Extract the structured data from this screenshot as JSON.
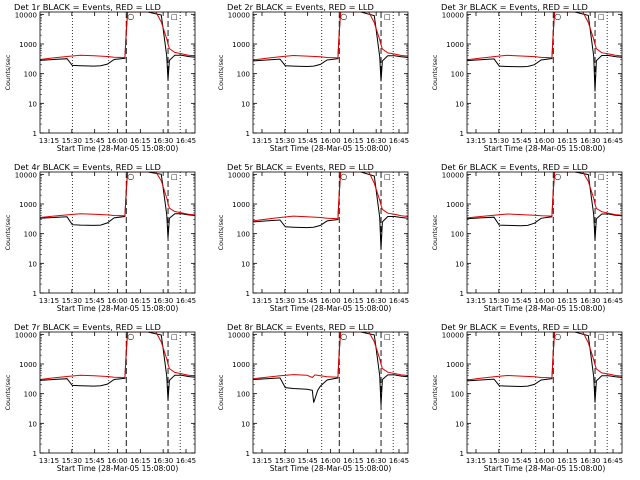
{
  "chart_data": {
    "type": "line",
    "common": {
      "ylabel": "Counts/sec",
      "xlabel": "Start Time (28-Mar-05 15:08:00)",
      "x_ticks": [
        "13:15",
        "15:30",
        "15:45",
        "16:00",
        "16:15",
        "16:30",
        "16:45"
      ],
      "y_ticks": [
        "1",
        "10",
        "100",
        "1000",
        "10000"
      ],
      "ylim": [
        1,
        12000
      ],
      "y_scale": "log",
      "xlim_min": [
        0,
        115
      ],
      "dotted_lines_min": [
        24,
        51,
        104
      ],
      "dashed_lines_min": [
        64,
        95
      ],
      "series_colors": {
        "events": "#000000",
        "lld": "#e00000"
      },
      "marker_labels": [
        "○",
        "□"
      ]
    },
    "panels": [
      {
        "title": "Det 1r BLACK = Events, RED = LLD",
        "series": [
          {
            "name": "events",
            "x": [
              0,
              10,
              20,
              24,
              30,
              40,
              45,
              50,
              55,
              63,
              64,
              65,
              70,
              80,
              90,
              94,
              95,
              96,
              100,
              105,
              110,
              115
            ],
            "y": [
              280,
              300,
              320,
              190,
              185,
              180,
              185,
              210,
              300,
              330,
              2500,
              12000,
              12000,
              12000,
              9500,
              400,
              60,
              280,
              420,
              420,
              380,
              360
            ]
          },
          {
            "name": "lld",
            "x": [
              0,
              10,
              20,
              30,
              40,
              50,
              55,
              63,
              64,
              65,
              70,
              80,
              86,
              90,
              94,
              95,
              96,
              100,
              105,
              110,
              115
            ],
            "y": [
              300,
              340,
              380,
              420,
              400,
              380,
              360,
              350,
              3000,
              12000,
              12000,
              12000,
              12000,
              5500,
              1500,
              1000,
              700,
              520,
              470,
              420,
              400
            ]
          }
        ]
      },
      {
        "title": "Det 2r BLACK = Events, RED = LLD",
        "series": [
          {
            "name": "events",
            "x": [
              0,
              10,
              20,
              24,
              30,
              40,
              45,
              50,
              55,
              63,
              64,
              65,
              70,
              80,
              90,
              94,
              95,
              96,
              100,
              105,
              110,
              115
            ],
            "y": [
              270,
              290,
              310,
              185,
              180,
              175,
              180,
              205,
              290,
              320,
              2400,
              12000,
              12000,
              12000,
              9000,
              380,
              55,
              270,
              400,
              400,
              370,
              350
            ]
          },
          {
            "name": "lld",
            "x": [
              0,
              10,
              20,
              30,
              40,
              50,
              55,
              63,
              64,
              65,
              70,
              80,
              86,
              90,
              94,
              95,
              96,
              100,
              105,
              110,
              115
            ],
            "y": [
              290,
              330,
              370,
              410,
              390,
              370,
              350,
              340,
              2900,
              12000,
              12000,
              12000,
              12000,
              5200,
              1400,
              950,
              680,
              500,
              460,
              410,
              390
            ]
          }
        ]
      },
      {
        "title": "Det 3r BLACK = Events, RED = LLD",
        "series": [
          {
            "name": "events",
            "x": [
              0,
              10,
              20,
              24,
              30,
              40,
              45,
              50,
              55,
              63,
              64,
              65,
              70,
              80,
              90,
              94,
              95,
              96,
              100,
              105,
              110,
              115
            ],
            "y": [
              275,
              295,
              315,
              180,
              175,
              170,
              175,
              200,
              290,
              325,
              2450,
              12000,
              12000,
              12000,
              9200,
              390,
              25,
              275,
              410,
              410,
              375,
              355
            ]
          },
          {
            "name": "lld",
            "x": [
              0,
              10,
              20,
              30,
              40,
              50,
              55,
              63,
              64,
              65,
              70,
              80,
              86,
              90,
              94,
              95,
              96,
              100,
              105,
              110,
              115
            ],
            "y": [
              295,
              335,
              375,
              415,
              395,
              375,
              355,
              345,
              2950,
              12000,
              12000,
              12000,
              12000,
              5300,
              1450,
              980,
              690,
              510,
              465,
              415,
              395
            ]
          }
        ]
      },
      {
        "title": "Det 4r BLACK = Events, RED = LLD",
        "series": [
          {
            "name": "events",
            "x": [
              0,
              10,
              20,
              24,
              30,
              40,
              45,
              50,
              55,
              63,
              64,
              65,
              70,
              80,
              90,
              94,
              95,
              96,
              100,
              105,
              110,
              115
            ],
            "y": [
              330,
              350,
              370,
              200,
              195,
              190,
              195,
              230,
              340,
              380,
              2800,
              12000,
              12000,
              12000,
              10000,
              450,
              70,
              330,
              470,
              470,
              430,
              410
            ]
          },
          {
            "name": "lld",
            "x": [
              0,
              10,
              20,
              30,
              40,
              50,
              55,
              63,
              64,
              65,
              70,
              80,
              86,
              90,
              94,
              95,
              96,
              100,
              105,
              110,
              115
            ],
            "y": [
              350,
              390,
              430,
              470,
              450,
              430,
              410,
              400,
              3300,
              12000,
              12000,
              12000,
              12000,
              6000,
              1600,
              1050,
              720,
              560,
              500,
              450,
              430
            ]
          }
        ]
      },
      {
        "title": "Det 5r BLACK = Events, RED = LLD",
        "series": [
          {
            "name": "events",
            "x": [
              0,
              10,
              20,
              24,
              30,
              40,
              45,
              50,
              55,
              63,
              64,
              65,
              70,
              80,
              90,
              94,
              95,
              96,
              100,
              105,
              110,
              115
            ],
            "y": [
              250,
              270,
              290,
              170,
              165,
              160,
              165,
              190,
              270,
              300,
              2200,
              12000,
              12000,
              12000,
              8800,
              360,
              30,
              250,
              380,
              380,
              350,
              330
            ]
          },
          {
            "name": "lld",
            "x": [
              0,
              10,
              20,
              30,
              40,
              50,
              55,
              63,
              64,
              65,
              70,
              80,
              86,
              90,
              94,
              95,
              96,
              100,
              105,
              110,
              115
            ],
            "y": [
              270,
              310,
              350,
              390,
              370,
              350,
              330,
              320,
              2700,
              12000,
              12000,
              12000,
              12000,
              5000,
              1350,
              920,
              660,
              490,
              450,
              400,
              380
            ]
          }
        ]
      },
      {
        "title": "Det 6r BLACK = Events, RED = LLD",
        "series": [
          {
            "name": "events",
            "x": [
              0,
              10,
              20,
              24,
              30,
              40,
              45,
              50,
              55,
              63,
              64,
              65,
              70,
              80,
              90,
              94,
              95,
              96,
              100,
              105,
              110,
              115
            ],
            "y": [
              320,
              340,
              360,
              195,
              190,
              185,
              190,
              225,
              330,
              370,
              2700,
              12000,
              12000,
              12000,
              9800,
              440,
              60,
              320,
              460,
              460,
              420,
              400
            ]
          },
          {
            "name": "lld",
            "x": [
              0,
              10,
              20,
              30,
              40,
              50,
              55,
              63,
              64,
              65,
              70,
              80,
              86,
              90,
              94,
              95,
              96,
              100,
              105,
              110,
              115
            ],
            "y": [
              340,
              380,
              420,
              460,
              440,
              420,
              400,
              390,
              3200,
              12000,
              12000,
              12000,
              12000,
              5800,
              1550,
              1020,
              700,
              550,
              490,
              440,
              420
            ]
          }
        ]
      },
      {
        "title": "Det 7r BLACK = Events, RED = LLD",
        "series": [
          {
            "name": "events",
            "x": [
              0,
              10,
              20,
              24,
              30,
              40,
              45,
              50,
              55,
              63,
              64,
              65,
              70,
              80,
              90,
              94,
              95,
              96,
              100,
              105,
              110,
              115
            ],
            "y": [
              280,
              300,
              320,
              190,
              185,
              180,
              185,
              210,
              300,
              330,
              2500,
              12000,
              12000,
              12000,
              9500,
              400,
              60,
              280,
              420,
              420,
              380,
              360
            ]
          },
          {
            "name": "lld",
            "x": [
              0,
              10,
              20,
              30,
              40,
              50,
              55,
              63,
              64,
              65,
              70,
              80,
              86,
              90,
              94,
              95,
              96,
              100,
              105,
              110,
              115
            ],
            "y": [
              300,
              340,
              380,
              420,
              400,
              380,
              360,
              350,
              3000,
              12000,
              12000,
              12000,
              12000,
              5500,
              1500,
              1000,
              700,
              520,
              470,
              420,
              400
            ]
          }
        ]
      },
      {
        "title": "Det 8r BLACK = Events, RED = LLD",
        "series": [
          {
            "name": "events",
            "x": [
              0,
              10,
              20,
              24,
              30,
              40,
              44,
              45,
              48,
              50,
              55,
              63,
              64,
              65,
              70,
              80,
              90,
              94,
              95,
              96,
              100,
              105,
              110,
              115
            ],
            "y": [
              300,
              320,
              340,
              160,
              150,
              140,
              130,
              50,
              130,
              180,
              290,
              340,
              2600,
              12000,
              12000,
              12000,
              9600,
              410,
              40,
              300,
              430,
              430,
              390,
              370
            ]
          },
          {
            "name": "lld",
            "x": [
              0,
              10,
              20,
              30,
              40,
              44,
              46,
              50,
              55,
              63,
              64,
              65,
              70,
              80,
              86,
              90,
              94,
              95,
              96,
              100,
              105,
              110,
              115
            ],
            "y": [
              320,
              360,
              400,
              440,
              420,
              350,
              430,
              400,
              370,
              360,
              3100,
              12000,
              12000,
              12000,
              12000,
              5600,
              1500,
              1000,
              700,
              530,
              480,
              430,
              410
            ]
          }
        ]
      },
      {
        "title": "Det 9r BLACK = Events, RED = LLD",
        "series": [
          {
            "name": "events",
            "x": [
              0,
              10,
              20,
              24,
              30,
              40,
              45,
              50,
              55,
              63,
              64,
              65,
              70,
              80,
              90,
              94,
              95,
              96,
              100,
              105,
              110,
              115
            ],
            "y": [
              270,
              290,
              310,
              185,
              180,
              175,
              180,
              205,
              290,
              320,
              2400,
              12000,
              12000,
              12000,
              9000,
              380,
              50,
              270,
              400,
              400,
              370,
              350
            ]
          },
          {
            "name": "lld",
            "x": [
              0,
              10,
              20,
              30,
              40,
              50,
              55,
              63,
              64,
              65,
              70,
              80,
              86,
              90,
              94,
              95,
              96,
              100,
              105,
              110,
              115
            ],
            "y": [
              290,
              330,
              370,
              410,
              390,
              370,
              350,
              340,
              2900,
              12000,
              12000,
              12000,
              12000,
              5200,
              1400,
              950,
              680,
              500,
              460,
              410,
              390
            ]
          }
        ]
      }
    ]
  }
}
